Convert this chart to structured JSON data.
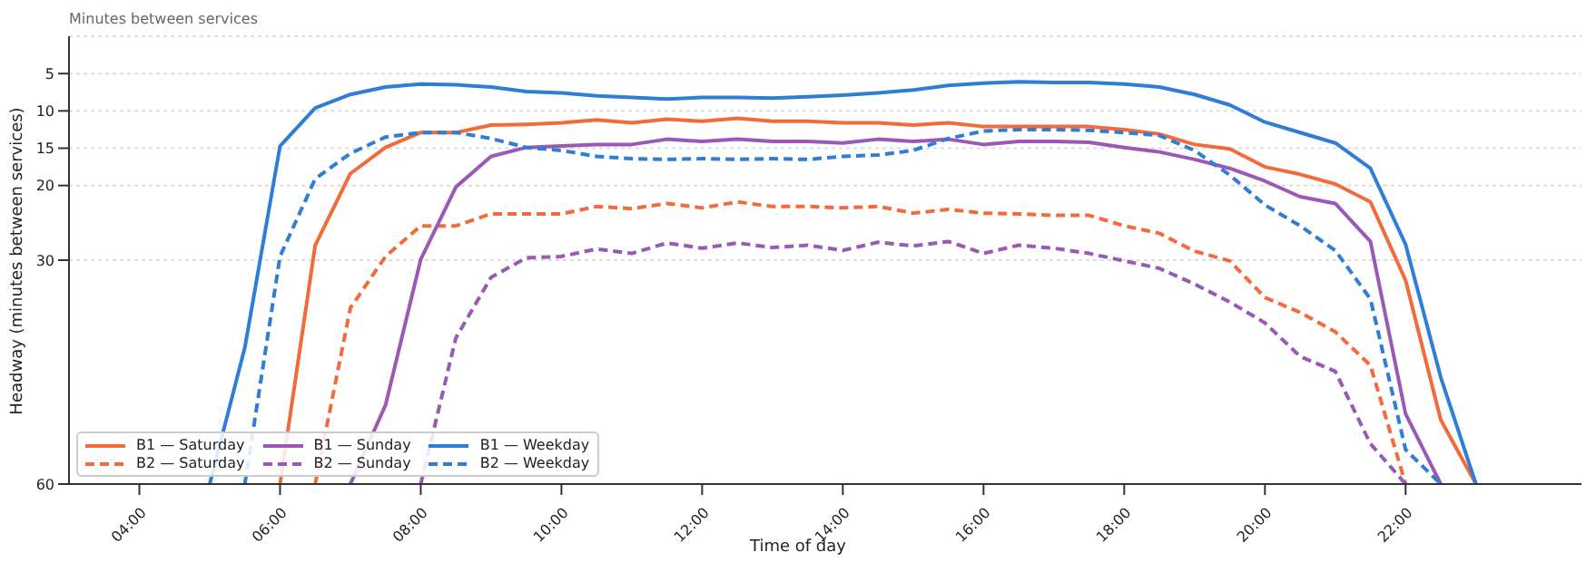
{
  "chart_data": {
    "type": "line",
    "title": "Minutes between services",
    "xlabel": "Time of day",
    "ylabel": "Headway (minutes between services)",
    "x": [
      5,
      5.5,
      6,
      6.5,
      7,
      7.5,
      8,
      8.5,
      9,
      9.5,
      10,
      10.5,
      11,
      11.5,
      12,
      12.5,
      13,
      13.5,
      14,
      14.5,
      15,
      15.5,
      16,
      16.5,
      17,
      17.5,
      18,
      18.5,
      19,
      19.5,
      20,
      20.5,
      21,
      21.5,
      22,
      22.5,
      23
    ],
    "series": [
      {
        "name": "B1 — Saturday",
        "color": "#f26b3a",
        "line_style": "solid",
        "values": [
          null,
          null,
          60,
          28.0,
          18.4,
          14.9,
          12.9,
          12.9,
          11.9,
          11.8,
          11.6,
          11.2,
          11.6,
          11.1,
          11.4,
          11.0,
          11.4,
          11.4,
          11.6,
          11.6,
          11.9,
          11.6,
          12.1,
          12.1,
          12.1,
          12.1,
          12.5,
          13.1,
          14.5,
          15.1,
          17.5,
          18.5,
          19.8,
          22.2,
          32.7,
          51.4,
          60
        ]
      },
      {
        "name": "B2 — Saturday",
        "color": "#f26b3a",
        "line_style": "dashed",
        "values": [
          null,
          null,
          null,
          60,
          36.4,
          29.5,
          25.4,
          25.4,
          23.8,
          23.8,
          23.8,
          22.8,
          23.1,
          22.4,
          23.0,
          22.2,
          22.8,
          22.8,
          23.0,
          22.8,
          23.7,
          23.2,
          23.7,
          23.8,
          24.0,
          24.0,
          25.4,
          26.4,
          28.8,
          30.1,
          35.0,
          37.0,
          39.6,
          44.1,
          60,
          null,
          null
        ]
      },
      {
        "name": "B1 — Sunday",
        "color": "#9b59b6",
        "line_style": "solid",
        "values": [
          null,
          null,
          null,
          null,
          60,
          49.4,
          29.9,
          20.2,
          16.1,
          14.9,
          14.7,
          14.5,
          14.5,
          13.8,
          14.1,
          13.8,
          14.1,
          14.1,
          14.3,
          13.8,
          14.1,
          13.8,
          14.5,
          14.1,
          14.1,
          14.2,
          14.9,
          15.5,
          16.5,
          17.7,
          19.4,
          21.5,
          22.4,
          27.5,
          50.6,
          60,
          null
        ]
      },
      {
        "name": "B2 — Sunday",
        "color": "#9b59b6",
        "line_style": "dashed",
        "values": [
          null,
          null,
          null,
          null,
          null,
          null,
          60,
          40.4,
          32.3,
          29.7,
          29.5,
          28.5,
          29.1,
          27.7,
          28.4,
          27.7,
          28.3,
          28.0,
          28.7,
          27.6,
          28.1,
          27.5,
          29.1,
          28.0,
          28.4,
          29.1,
          30.1,
          31.1,
          33.2,
          35.6,
          38.4,
          42.9,
          44.9,
          54.6,
          60,
          null,
          null
        ]
      },
      {
        "name": "B1 — Weekday",
        "color": "#2e7dd7",
        "line_style": "solid",
        "values": [
          60,
          41.7,
          14.7,
          9.6,
          7.8,
          6.8,
          6.4,
          6.5,
          6.8,
          7.4,
          7.6,
          8.0,
          8.2,
          8.4,
          8.2,
          8.2,
          8.3,
          8.1,
          7.9,
          7.6,
          7.2,
          6.6,
          6.3,
          6.1,
          6.2,
          6.2,
          6.4,
          6.8,
          7.8,
          9.2,
          11.5,
          12.9,
          14.3,
          17.7,
          27.9,
          45.7,
          60
        ]
      },
      {
        "name": "B2 — Weekday",
        "color": "#2e7dd7",
        "line_style": "dashed",
        "values": [
          null,
          60,
          29.5,
          19.1,
          15.7,
          13.5,
          12.9,
          12.9,
          13.7,
          14.9,
          15.3,
          16.1,
          16.4,
          16.5,
          16.4,
          16.5,
          16.4,
          16.5,
          16.1,
          15.9,
          15.3,
          13.7,
          12.7,
          12.5,
          12.5,
          12.6,
          12.9,
          13.3,
          15.3,
          18.6,
          22.6,
          25.4,
          28.7,
          35.2,
          55.4,
          60,
          null
        ]
      }
    ],
    "xlim": [
      3,
      24.5
    ],
    "xticks": [
      {
        "value": 4,
        "label": "04:00"
      },
      {
        "value": 6,
        "label": "06:00"
      },
      {
        "value": 8,
        "label": "08:00"
      },
      {
        "value": 10,
        "label": "10:00"
      },
      {
        "value": 12,
        "label": "12:00"
      },
      {
        "value": 14,
        "label": "14:00"
      },
      {
        "value": 16,
        "label": "16:00"
      },
      {
        "value": 18,
        "label": "18:00"
      },
      {
        "value": 20,
        "label": "20:00"
      },
      {
        "value": 22,
        "label": "22:00"
      }
    ],
    "ylim": [
      60,
      0
    ],
    "yticks": [
      5,
      10,
      15,
      20,
      30,
      60
    ],
    "grid": "y",
    "legend": "bottom left",
    "marker": "none"
  }
}
